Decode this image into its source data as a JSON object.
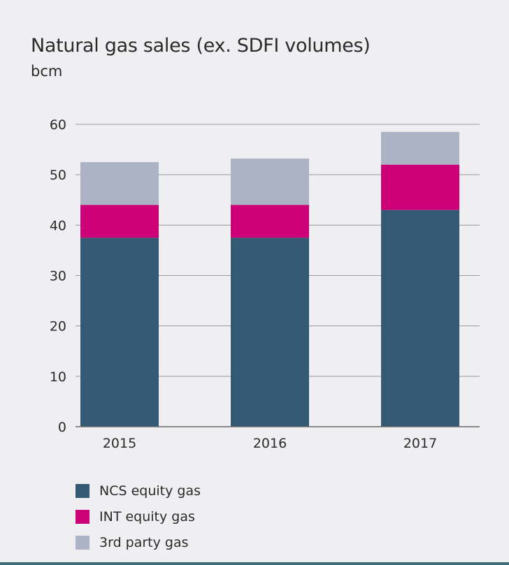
{
  "title": "Natural gas sales (ex. SDFI volumes)",
  "unit": "bcm",
  "colors": {
    "ncs": "#345a73",
    "int": "#cc0077",
    "third": "#acb3c4",
    "grid": "#9a9a9a",
    "axis": "#6a6a6a"
  },
  "chart_data": {
    "type": "bar",
    "stacked": true,
    "categories": [
      "2015",
      "2016",
      "2017"
    ],
    "series": [
      {
        "name": "NCS equity gas",
        "values": [
          37.5,
          37.5,
          43.0
        ]
      },
      {
        "name": "INT equity gas",
        "values": [
          6.5,
          6.5,
          9.0
        ]
      },
      {
        "name": "3rd party gas",
        "values": [
          8.5,
          9.2,
          6.5
        ]
      }
    ],
    "ylim": [
      0,
      60
    ],
    "yticks": [
      "0",
      "10",
      "20",
      "30",
      "40",
      "50",
      "60"
    ],
    "grid": true,
    "legend_position": "bottom-left"
  }
}
